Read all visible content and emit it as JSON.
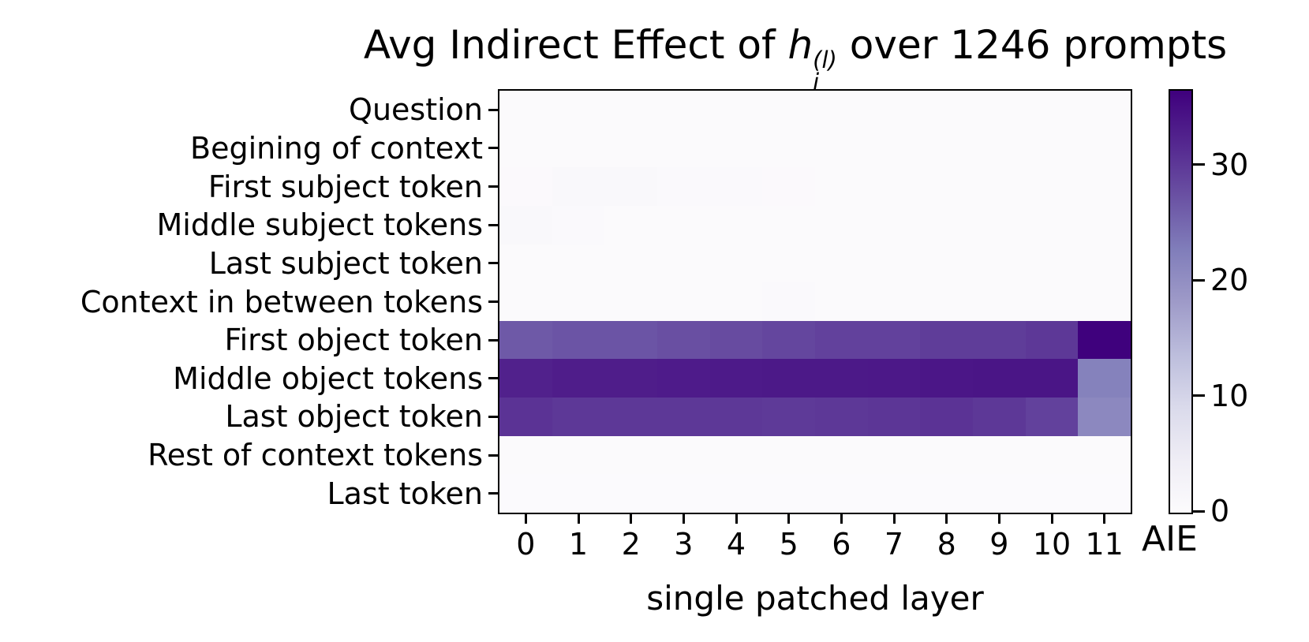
{
  "title": {
    "prefix": "Avg Indirect Effect of ",
    "var": "h",
    "var_sup": "(l)",
    "var_sub": "i",
    "suffix": " over 1246 prompts"
  },
  "chart_data": {
    "type": "heatmap",
    "title": "Avg Indirect Effect of h_i^(l) over 1246 prompts",
    "xlabel": "single patched layer",
    "ylabel": "",
    "x_ticks": [
      "0",
      "1",
      "2",
      "3",
      "4",
      "5",
      "6",
      "7",
      "8",
      "9",
      "10",
      "11"
    ],
    "y_categories": [
      "Question",
      "Begining of context",
      "First subject token",
      "Middle subject tokens",
      "Last subject token",
      "Context in between tokens",
      "First object token",
      "Middle object tokens",
      "Last object token",
      "Rest of context tokens",
      "Last token"
    ],
    "values": [
      [
        0.3,
        0.3,
        0.3,
        0.3,
        0.3,
        0.3,
        0.3,
        0.3,
        0.3,
        0.3,
        0.3,
        0.3
      ],
      [
        0.4,
        0.3,
        0.3,
        0.3,
        0.3,
        0.3,
        0.3,
        0.3,
        0.3,
        0.3,
        0.3,
        0.3
      ],
      [
        0.5,
        0.9,
        0.9,
        0.8,
        0.7,
        0.5,
        0.4,
        0.4,
        0.4,
        0.4,
        0.4,
        0.3
      ],
      [
        1.1,
        0.6,
        0.4,
        0.4,
        0.4,
        0.4,
        0.4,
        0.3,
        0.3,
        0.3,
        0.3,
        0.3
      ],
      [
        0.4,
        0.4,
        0.4,
        0.4,
        0.4,
        0.4,
        0.3,
        0.3,
        0.3,
        0.3,
        0.3,
        0.3
      ],
      [
        0.4,
        0.4,
        0.4,
        0.4,
        0.4,
        0.6,
        0.4,
        0.4,
        0.4,
        0.4,
        0.4,
        0.3
      ],
      [
        26.5,
        27.0,
        27.0,
        27.5,
        28.0,
        28.5,
        29.0,
        29.0,
        29.5,
        29.5,
        30.0,
        36.3
      ],
      [
        32.5,
        33.0,
        33.0,
        33.2,
        33.4,
        33.5,
        33.5,
        33.6,
        33.8,
        34.0,
        34.0,
        22.0
      ],
      [
        30.5,
        30.0,
        30.0,
        30.0,
        30.0,
        29.8,
        30.0,
        30.2,
        30.5,
        30.0,
        29.0,
        21.0
      ],
      [
        0.3,
        0.3,
        0.3,
        0.3,
        0.3,
        0.3,
        0.3,
        0.3,
        0.3,
        0.3,
        0.3,
        0.3
      ],
      [
        0.2,
        0.2,
        0.2,
        0.2,
        0.2,
        0.2,
        0.2,
        0.2,
        0.2,
        0.2,
        0.2,
        0.2
      ]
    ],
    "vmin": 0,
    "vmax": 36.4,
    "colormap": "Purples",
    "colormap_stops": [
      [
        0,
        "#fcfbfd"
      ],
      [
        0.125,
        "#efedf5"
      ],
      [
        0.25,
        "#dadaeb"
      ],
      [
        0.375,
        "#bcbddc"
      ],
      [
        0.5,
        "#9e9ac8"
      ],
      [
        0.625,
        "#807dba"
      ],
      [
        0.75,
        "#6a51a3"
      ],
      [
        0.875,
        "#54278f"
      ],
      [
        1,
        "#3f007d"
      ]
    ],
    "grid": false,
    "colorbar": {
      "label": "AIE",
      "ticks": [
        0,
        10,
        20,
        30
      ]
    }
  }
}
